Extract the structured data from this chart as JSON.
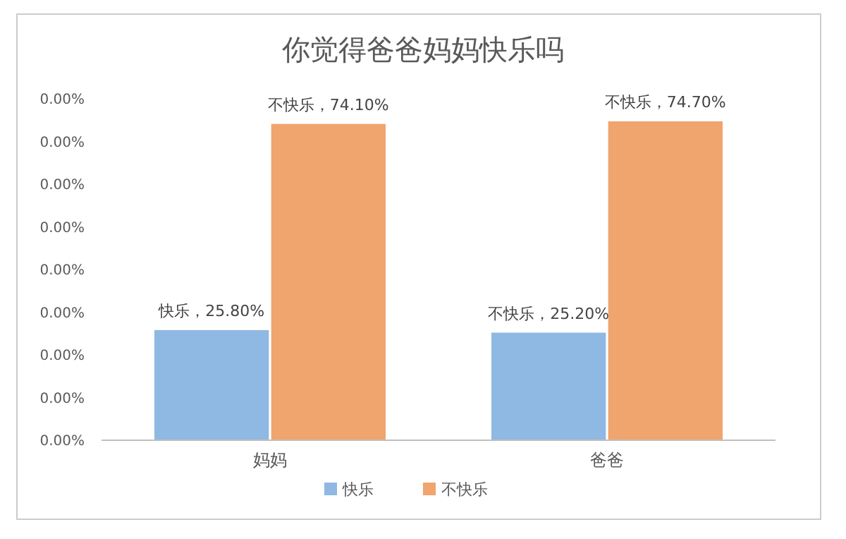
{
  "chart_data": {
    "type": "bar",
    "title": "你觉得爸爸妈妈快乐吗",
    "categories": [
      "妈妈",
      "爸爸"
    ],
    "series": [
      {
        "name": "快乐",
        "color": "#8fb8e2",
        "values": [
          25.8,
          25.2
        ],
        "value_labels": [
          "快乐，25.80%",
          "不快乐，25.20%"
        ]
      },
      {
        "name": "不快乐",
        "color": "#f0a46e",
        "values": [
          74.1,
          74.7
        ],
        "value_labels": [
          "不快乐，74.10%",
          "不快乐，74.70%"
        ]
      }
    ],
    "annotations": [
      "0.00%",
      "0.00%",
      "0.00%",
      "0.00%",
      "0.00%",
      "0.00%",
      "0.00%",
      "0.00%",
      "0.00%"
    ],
    "legend": "bottom"
  }
}
